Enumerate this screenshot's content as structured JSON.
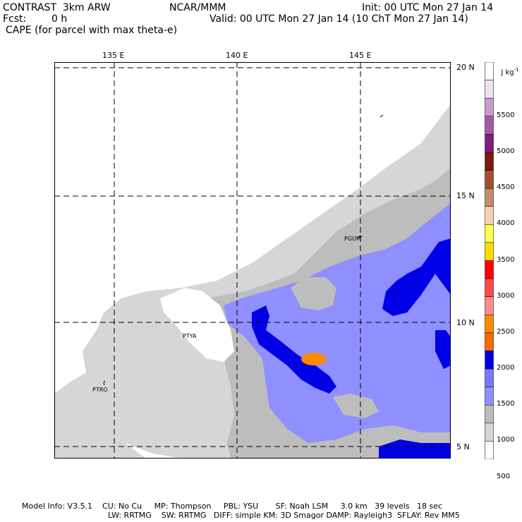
{
  "header": {
    "model": "CONTRAST  3km ARW",
    "org": "NCAR/MMM",
    "init": "Init: 00 UTC Mon 27 Jan 14",
    "fcst_label": "Fcst:",
    "fcst_value": "0 h",
    "valid": "Valid: 00 UTC Mon 27 Jan 14 (10 ChT Mon 27 Jan 14)",
    "field": "CAPE (for parcel with max theta-e)"
  },
  "axes": {
    "lon_labels": [
      "135 E",
      "140 E",
      "145 E"
    ],
    "lat_labels": [
      "20 N",
      "15 N",
      "10 N",
      "5 N"
    ]
  },
  "stations": [
    "PGUM",
    "PTYA",
    "PTRO"
  ],
  "colorbar": {
    "units": "J kg",
    "units_exp": "-1",
    "labels": [
      "5500",
      "5000",
      "4500",
      "4000",
      "3500",
      "3000",
      "2500",
      "2000",
      "1500",
      "1000",
      "500"
    ],
    "colors": [
      "#ffffff",
      "#f1e0ef",
      "#c99ccb",
      "#a45aa5",
      "#7e1f80",
      "#7a1a10",
      "#a4502f",
      "#c48c6a",
      "#f2d3b6",
      "#ffff50",
      "#ffdc00",
      "#ff0000",
      "#ff4a4a",
      "#ff8c8c",
      "#ff8a00",
      "#ff6600",
      "#0000e6",
      "#7878ff",
      "#8f8fff",
      "#bdbdbd",
      "#d6d6d6",
      "#ffffff"
    ]
  },
  "footer": {
    "line1": "Model Info: V3.5.1    CU: No Cu     MP: Thompson     PBL: YSU       SF: Noah LSM     3.0 km   39 levels   18 sec",
    "line2": "LW: RRTMG    SW: RRTMG   DIFF: simple KM: 3D Smagor DAMP: Rayleigh3  SFLAY: Rev MM5"
  }
}
